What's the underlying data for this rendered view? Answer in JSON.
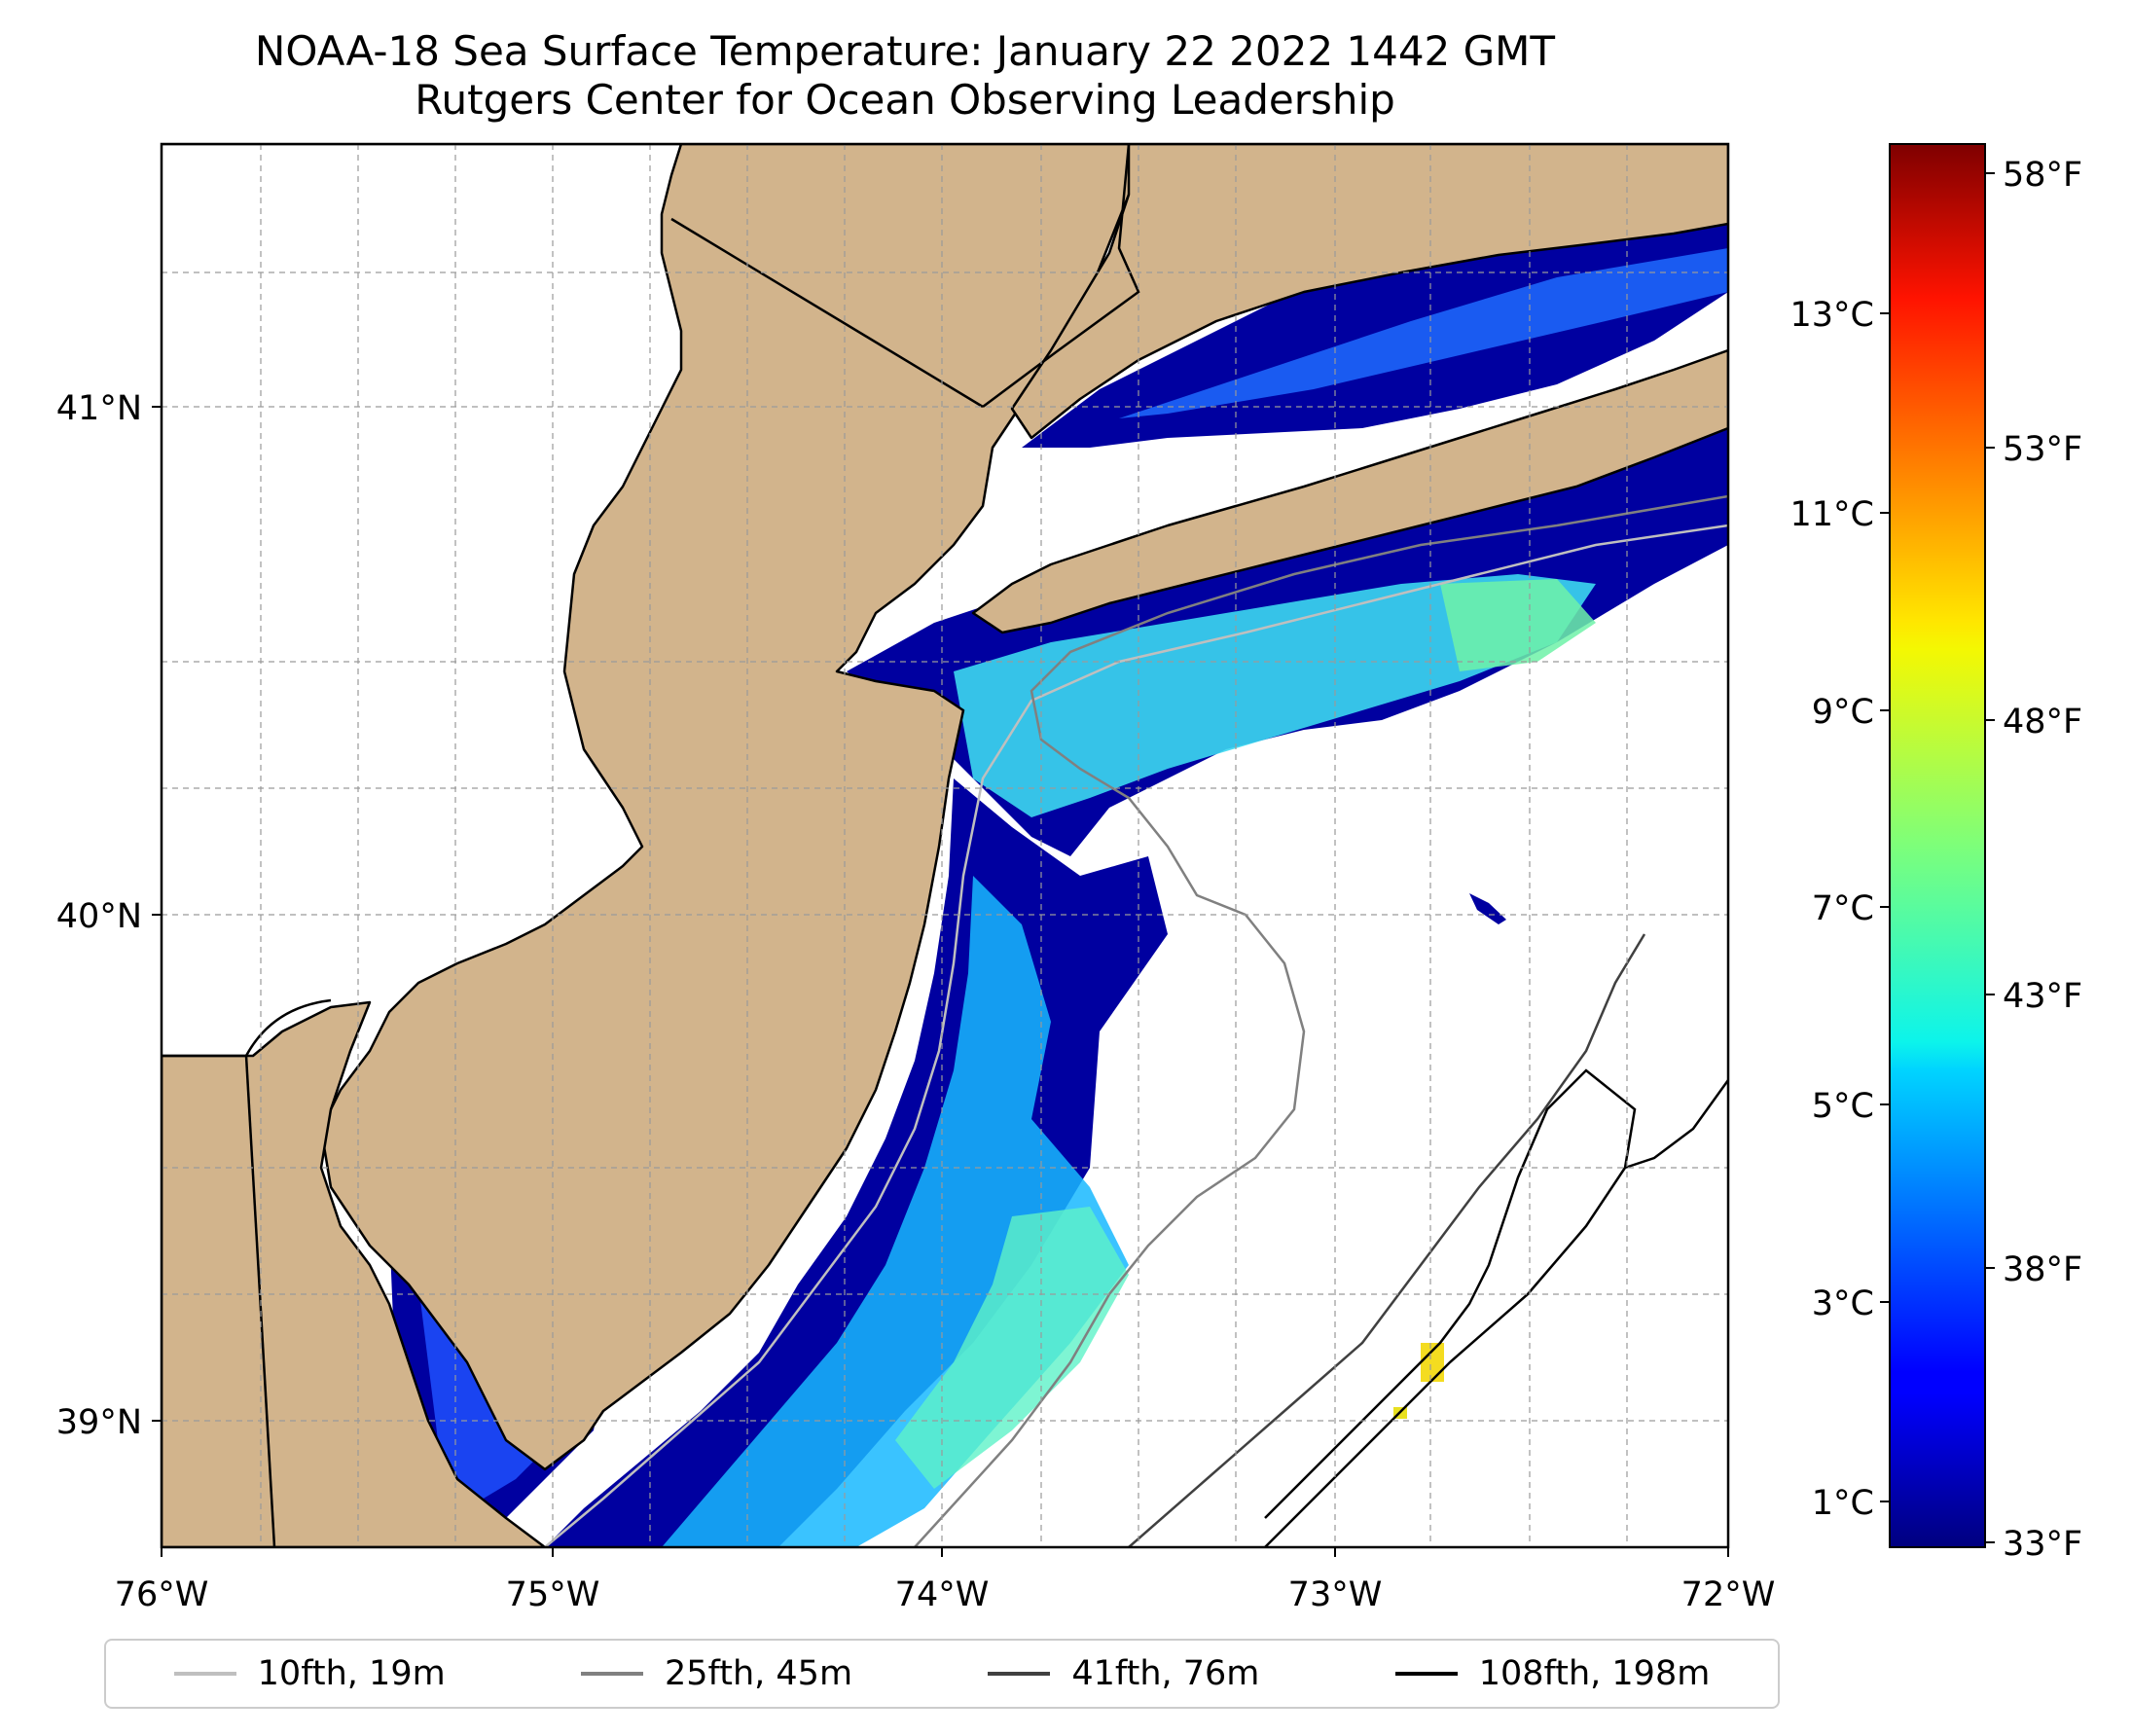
{
  "title": {
    "line1": "NOAA-18 Sea Surface Temperature: January 22 2022 1442 GMT",
    "line2": "Rutgers Center for Ocean Observing Leadership"
  },
  "map": {
    "lon_range": [
      -76,
      -72
    ],
    "lat_range": [
      38.75,
      41.55
    ],
    "x_ticks": [
      "76°W",
      "75°W",
      "74°W",
      "73°W",
      "72°W"
    ],
    "y_ticks": [
      "41°N",
      "40°N",
      "39°N"
    ],
    "gridlines": true,
    "colors": {
      "land": "#d2b48c",
      "ocean_missing": "#ffffff",
      "coast": "#000000"
    }
  },
  "colorbar": {
    "colormap": "jet",
    "celsius_ticks": [
      "13°C",
      "11°C",
      "9°C",
      "7°C",
      "5°C",
      "3°C",
      "1°C"
    ],
    "fahrenheit_ticks": [
      "58°F",
      "53°F",
      "48°F",
      "43°F",
      "38°F",
      "33°F"
    ],
    "range_f": [
      32.5,
      59
    ]
  },
  "legend": {
    "placement": "bottom",
    "items": [
      {
        "label": "10fth, 19m",
        "color": "#bfbfbf"
      },
      {
        "label": "25fth, 45m",
        "color": "#808080"
      },
      {
        "label": "41fth, 76m",
        "color": "#404040"
      },
      {
        "label": "108fth, 198m",
        "color": "#000000"
      }
    ]
  }
}
